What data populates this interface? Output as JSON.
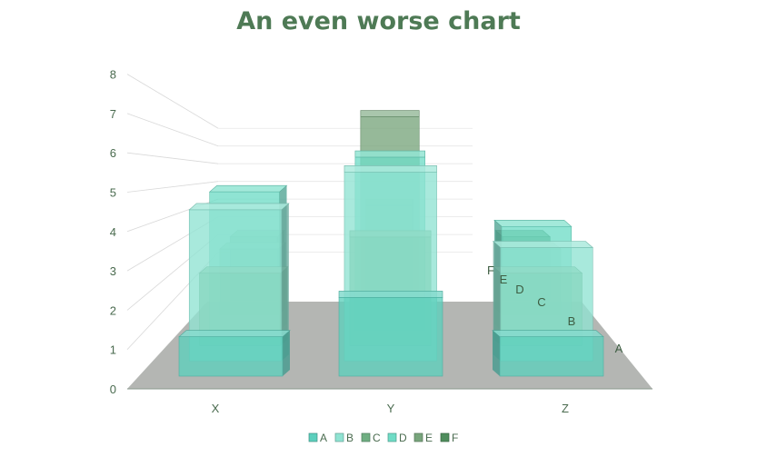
{
  "chart_data": {
    "type": "bar",
    "title": "An even worse chart",
    "subtype": "3d-column",
    "categories": [
      "X",
      "Y",
      "Z"
    ],
    "depth_labels": [
      "A",
      "B",
      "C",
      "D",
      "E",
      "F"
    ],
    "ylim": [
      0,
      8
    ],
    "yticks": [
      0,
      1,
      2,
      3,
      4,
      5,
      6,
      7,
      8
    ],
    "grid": true,
    "legend_position": "bottom",
    "series": [
      {
        "name": "A",
        "values": [
          1,
          2,
          1
        ],
        "color": "#5ccfbd"
      },
      {
        "name": "B",
        "values": [
          4,
          5,
          3
        ],
        "color": "#8fe3d2"
      },
      {
        "name": "C",
        "values": [
          2,
          3,
          2
        ],
        "color": "#6fae82"
      },
      {
        "name": "D",
        "values": [
          4,
          5,
          3
        ],
        "color": "#6fdcc6"
      },
      {
        "name": "E",
        "values": [
          2,
          6,
          2
        ],
        "color": "#78a57c"
      },
      {
        "name": "F",
        "values": [
          2,
          3,
          2
        ],
        "color": "#4f8d5d"
      }
    ]
  }
}
